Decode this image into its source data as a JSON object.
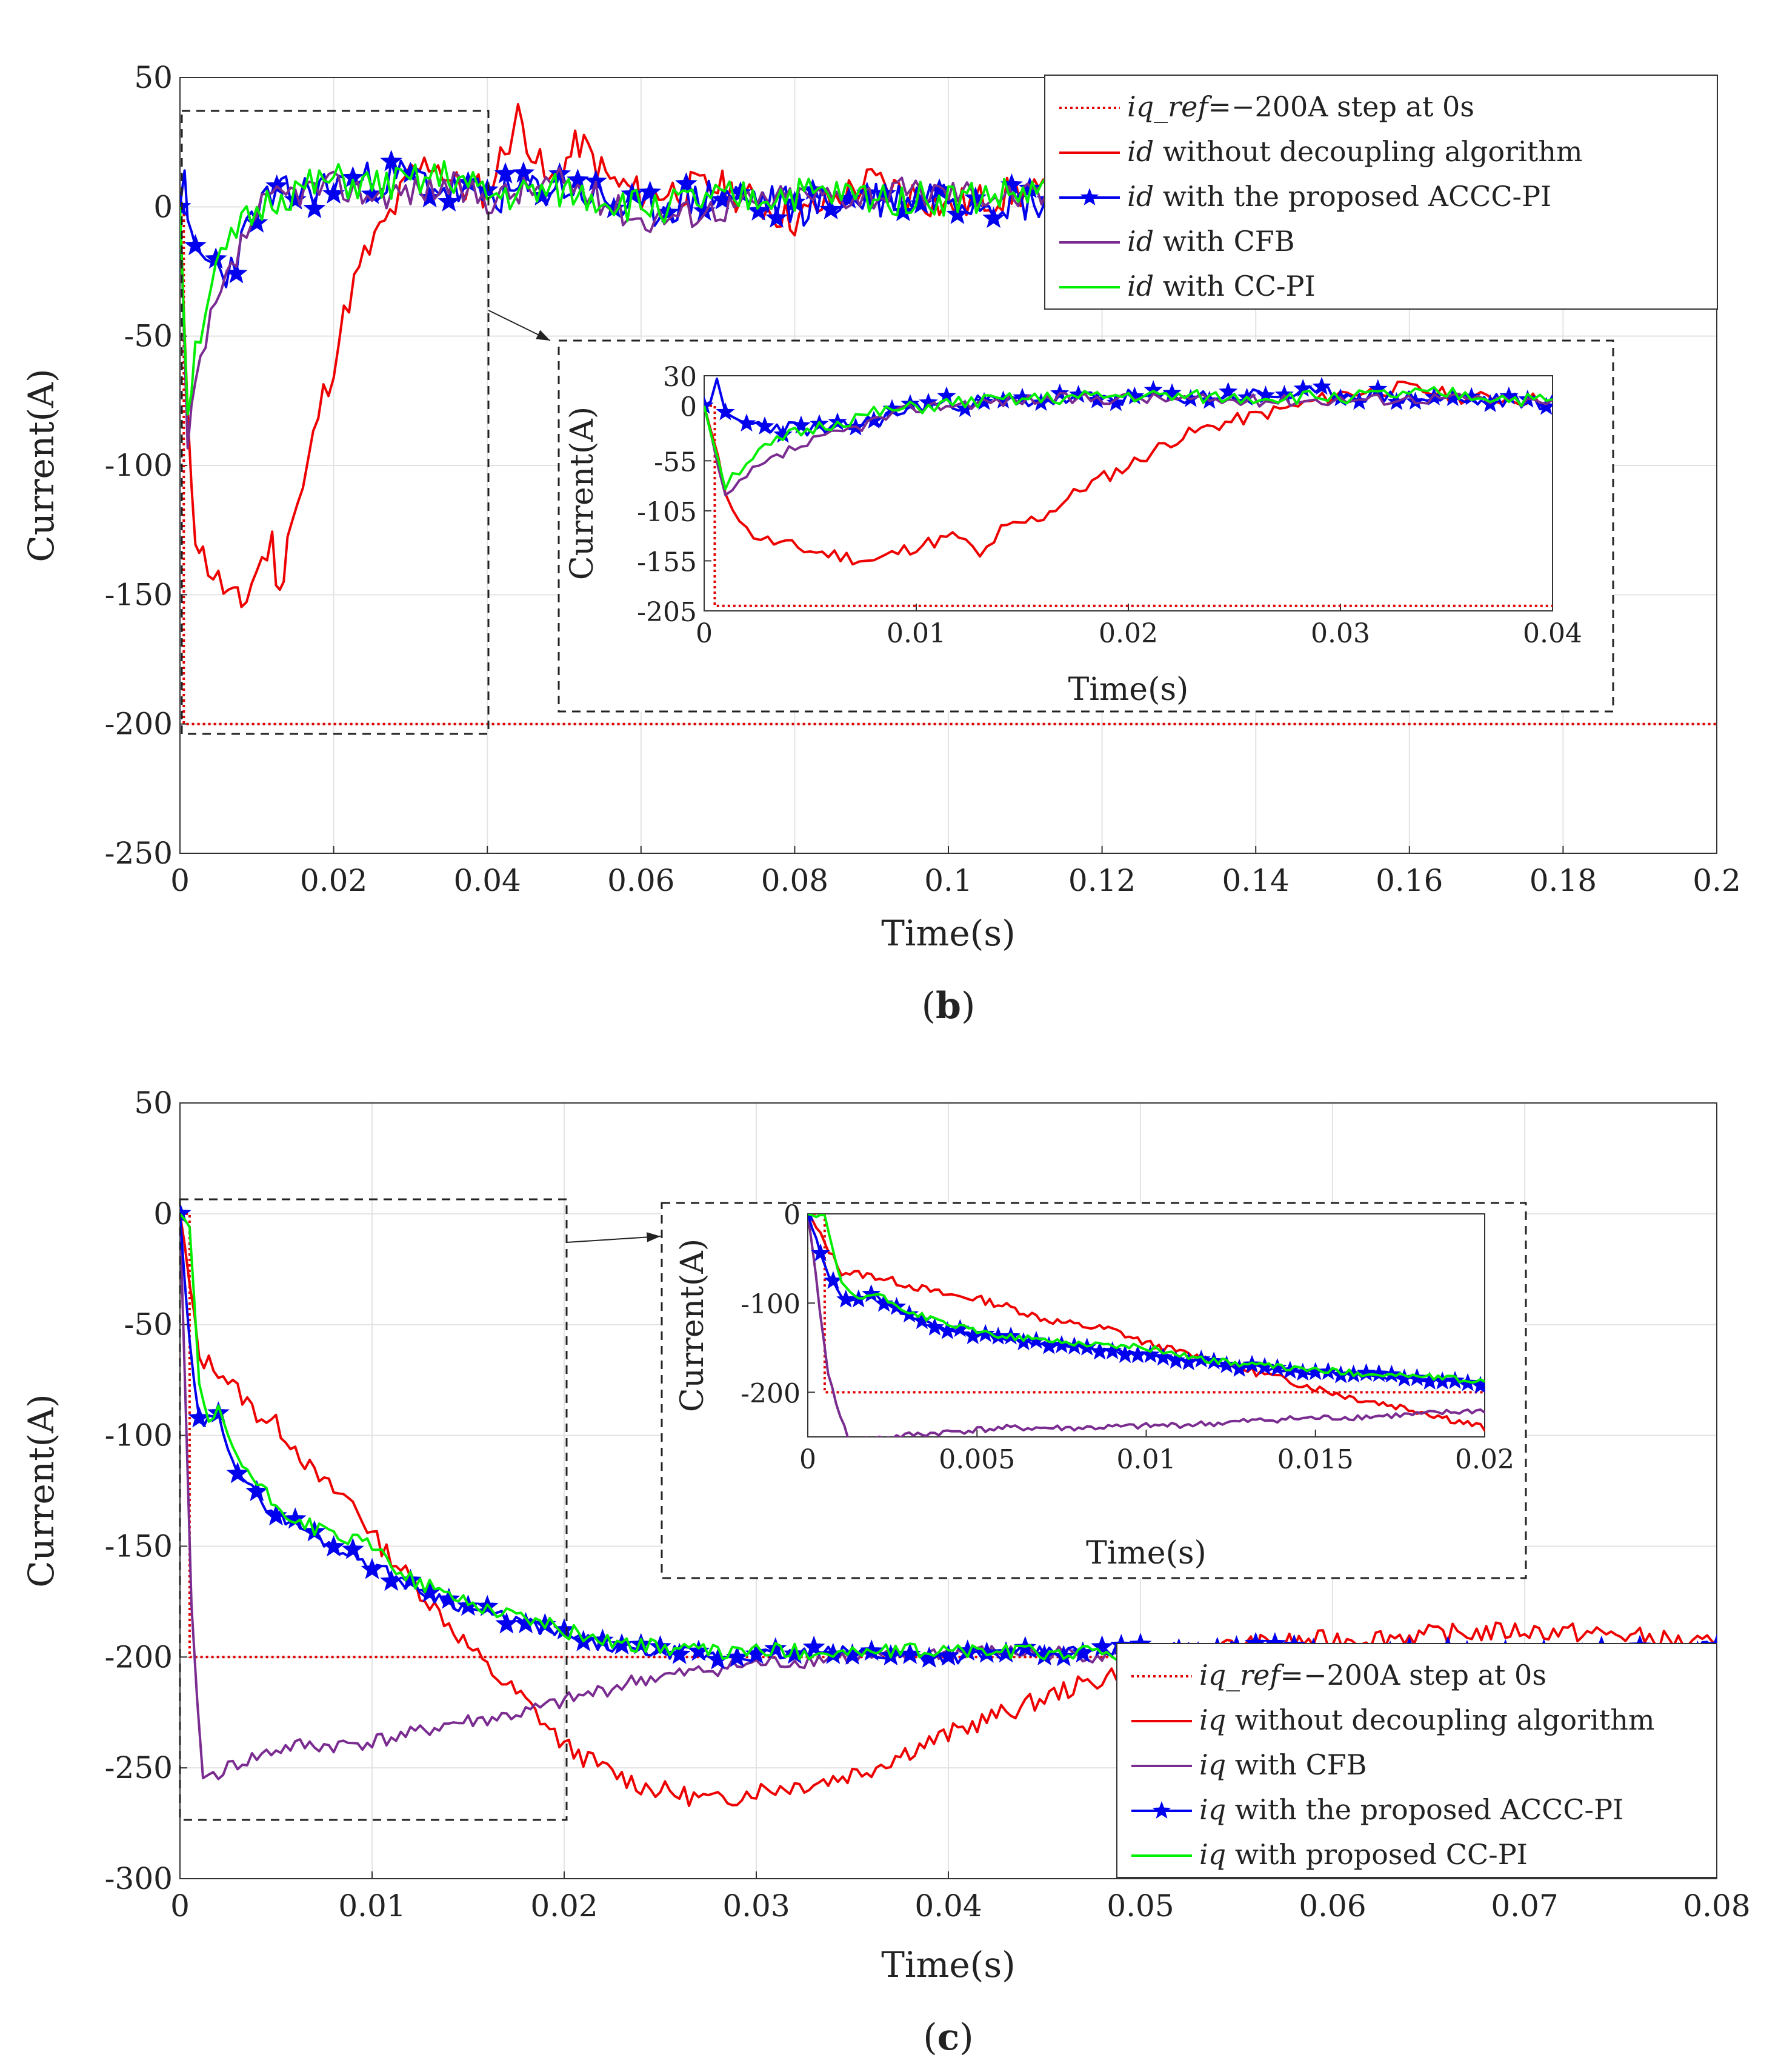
{
  "panels": [
    {
      "id": "b",
      "label_open": "(",
      "label_letter": "b",
      "label_close": ")",
      "xlabel": "Time(s)",
      "ylabel": "Current(A)",
      "xticks": [
        0,
        0.02,
        0.04,
        0.06,
        0.08,
        0.1,
        0.12,
        0.14,
        0.16,
        0.18,
        0.2
      ],
      "xtick_labels": [
        "0",
        "0.02",
        "0.04",
        "0.06",
        "0.08",
        "0.1",
        "0.12",
        "0.14",
        "0.16",
        "0.18",
        "0.2"
      ],
      "yticks": [
        -250,
        -200,
        -150,
        -100,
        -50,
        0,
        50
      ],
      "ytick_labels": [
        "-250",
        "-200",
        "-150",
        "-100",
        "-50",
        "0",
        "50"
      ],
      "legend": [
        {
          "name": "iq_ref",
          "var": "iq_ref",
          "eq": "=−200A step at 0s",
          "color": "#e00000",
          "style": "dotted",
          "marker": false
        },
        {
          "name": "id_nodec",
          "var": "id",
          "text": " without decoupling algorithm",
          "color": "#ee0000",
          "style": "solid",
          "marker": false
        },
        {
          "name": "id_accc",
          "var": "id",
          "text": " with the proposed ACCC-PI",
          "color": "#0000ee",
          "style": "solid",
          "marker": true
        },
        {
          "name": "id_cfb",
          "var": "id",
          "text": " with CFB",
          "color": "#7b2c91",
          "style": "solid",
          "marker": false
        },
        {
          "name": "id_ccpi",
          "var": "id",
          "text": " with CC-PI",
          "color": "#00ee00",
          "style": "solid",
          "marker": false
        }
      ],
      "inset": {
        "xlabel": "Time(s)",
        "ylabel": "Current(A)",
        "xticks": [
          0,
          0.01,
          0.02,
          0.03,
          0.04
        ],
        "xtick_labels": [
          "0",
          "0.01",
          "0.02",
          "0.03",
          "0.04"
        ],
        "yticks": [
          -205,
          -155,
          -105,
          -55,
          0,
          30
        ],
        "ytick_labels": [
          "-205",
          "-155",
          "-105",
          "-55",
          "0",
          "30"
        ]
      }
    },
    {
      "id": "c",
      "label_open": "(",
      "label_letter": "c",
      "label_close": ")",
      "xlabel": "Time(s)",
      "ylabel": "Current(A)",
      "xticks": [
        0,
        0.01,
        0.02,
        0.03,
        0.04,
        0.05,
        0.06,
        0.07,
        0.08
      ],
      "xtick_labels": [
        "0",
        "0.01",
        "0.02",
        "0.03",
        "0.04",
        "0.05",
        "0.06",
        "0.07",
        "0.08"
      ],
      "yticks": [
        -300,
        -250,
        -200,
        -150,
        -100,
        -50,
        0,
        50
      ],
      "ytick_labels": [
        "-300",
        "-250",
        "-200",
        "-150",
        "-100",
        "-50",
        "0",
        "50"
      ],
      "legend": [
        {
          "name": "iq_ref",
          "var": "iq_ref",
          "eq": "=−200A step at 0s",
          "color": "#e00000",
          "style": "dotted",
          "marker": false
        },
        {
          "name": "iq_nodec",
          "var": "iq",
          "text": " without decoupling algorithm",
          "color": "#ee0000",
          "style": "solid",
          "marker": false
        },
        {
          "name": "iq_cfb",
          "var": "iq",
          "text": " with CFB",
          "color": "#7b2c91",
          "style": "solid",
          "marker": false
        },
        {
          "name": "iq_accc",
          "var": "iq",
          "text": " with the proposed ACCC-PI",
          "color": "#0000ee",
          "style": "solid",
          "marker": true
        },
        {
          "name": "iq_ccpi",
          "var": "iq",
          "text": " with proposed CC-PI",
          "color": "#00ee00",
          "style": "solid",
          "marker": false
        }
      ],
      "inset": {
        "xlabel": "Time(s)",
        "ylabel": "Current(A)",
        "xticks": [
          0,
          0.005,
          0.01,
          0.015,
          0.02
        ],
        "xtick_labels": [
          "0",
          "0.005",
          "0.01",
          "0.015",
          "0.02"
        ],
        "yticks": [
          -200,
          -100,
          0
        ],
        "ytick_labels": [
          "-200",
          "-100",
          "0"
        ]
      }
    }
  ],
  "chart_data": [
    {
      "type": "line",
      "title": "(b)",
      "xlabel": "Time(s)",
      "ylabel": "Current(A)",
      "xlim": [
        0,
        0.2
      ],
      "ylim": [
        -250,
        50
      ],
      "grid": true,
      "legend_position": "top-right",
      "series": [
        {
          "name": "iq_ref=−200A step at 0s",
          "x": [
            0,
            0.0005,
            0.0005,
            0.2
          ],
          "y": [
            0,
            0,
            -200,
            -200
          ]
        },
        {
          "name": "id without decoupling algorithm",
          "x": [
            0,
            0.001,
            0.002,
            0.003,
            0.005,
            0.007,
            0.008,
            0.01,
            0.012,
            0.013,
            0.014,
            0.016,
            0.018,
            0.02,
            0.022,
            0.024,
            0.026,
            0.028,
            0.03,
            0.033,
            0.036,
            0.04,
            0.044,
            0.048,
            0.052,
            0.056,
            0.06,
            0.07,
            0.08,
            0.09,
            0.1,
            0.11,
            0.12,
            0.14,
            0.16,
            0.18,
            0.2
          ],
          "y": [
            0,
            -85,
            -125,
            -135,
            -145,
            -152,
            -155,
            -140,
            -130,
            -152,
            -125,
            -110,
            -80,
            -60,
            -35,
            -20,
            -10,
            0,
            12,
            18,
            8,
            6,
            35,
            8,
            25,
            10,
            5,
            8,
            -5,
            10,
            0,
            6,
            -3,
            4,
            2,
            5,
            0
          ]
        },
        {
          "name": "id with the proposed ACCC-PI",
          "x": [
            0,
            0.0006,
            0.001,
            0.002,
            0.004,
            0.006,
            0.008,
            0.01,
            0.012,
            0.015,
            0.02,
            0.025,
            0.03,
            0.035,
            0.04,
            0.05,
            0.06,
            0.07,
            0.08,
            0.09,
            0.1,
            0.11,
            0.12,
            0.14,
            0.16,
            0.18,
            0.2
          ],
          "y": [
            0,
            20,
            -12,
            -18,
            -22,
            -25,
            -15,
            0,
            3,
            5,
            8,
            10,
            12,
            6,
            4,
            8,
            -2,
            5,
            0,
            3,
            5,
            2,
            4,
            1,
            6,
            3,
            -8
          ]
        },
        {
          "name": "id with CFB",
          "x": [
            0,
            0.001,
            0.002,
            0.004,
            0.006,
            0.008,
            0.01,
            0.012,
            0.015,
            0.02,
            0.025,
            0.03,
            0.035,
            0.04,
            0.05,
            0.06,
            0.08,
            0.1,
            0.12,
            0.14
          ],
          "y": [
            0,
            -95,
            -70,
            -45,
            -30,
            -15,
            -2,
            2,
            6,
            8,
            5,
            6,
            8,
            3,
            10,
            -5,
            4,
            6,
            2,
            0
          ]
        },
        {
          "name": "id with CC-PI",
          "x": [
            0,
            0.001,
            0.002,
            0.004,
            0.006,
            0.008,
            0.01,
            0.012,
            0.015,
            0.02,
            0.025,
            0.03,
            0.035,
            0.04,
            0.05,
            0.06,
            0.08,
            0.1,
            0.12,
            0.14
          ],
          "y": [
            0,
            -78,
            -55,
            -30,
            -18,
            -8,
            -2,
            3,
            6,
            10,
            8,
            9,
            12,
            4,
            6,
            0,
            5,
            3,
            7,
            2
          ]
        }
      ]
    },
    {
      "type": "line",
      "title": "(c)",
      "xlabel": "Time(s)",
      "ylabel": "Current(A)",
      "xlim": [
        0,
        0.08
      ],
      "ylim": [
        -300,
        50
      ],
      "grid": true,
      "legend_position": "bottom-right",
      "series": [
        {
          "name": "iq_ref=−200A step at 0s",
          "x": [
            0,
            0.0005,
            0.0005,
            0.08
          ],
          "y": [
            0,
            0,
            -200,
            -200
          ]
        },
        {
          "name": "iq without decoupling algorithm",
          "x": [
            0,
            0.001,
            0.002,
            0.003,
            0.004,
            0.005,
            0.006,
            0.007,
            0.008,
            0.009,
            0.01,
            0.012,
            0.014,
            0.016,
            0.018,
            0.02,
            0.022,
            0.024,
            0.026,
            0.028,
            0.03,
            0.032,
            0.034,
            0.036,
            0.038,
            0.04,
            0.042,
            0.044,
            0.046,
            0.048,
            0.05,
            0.055,
            0.06,
            0.065,
            0.07,
            0.075,
            0.08
          ],
          "y": [
            0,
            -65,
            -70,
            -80,
            -90,
            -95,
            -105,
            -118,
            -125,
            -130,
            -145,
            -165,
            -185,
            -205,
            -220,
            -240,
            -250,
            -258,
            -262,
            -265,
            -260,
            -258,
            -255,
            -250,
            -242,
            -235,
            -228,
            -222,
            -215,
            -210,
            -200,
            -195,
            -192,
            -190,
            -188,
            -190,
            -195
          ]
        },
        {
          "name": "iq with CFB",
          "x": [
            0,
            0.0006,
            0.0012,
            0.002,
            0.003,
            0.004,
            0.005,
            0.006,
            0.008,
            0.01,
            0.012,
            0.014,
            0.016,
            0.018,
            0.02,
            0.022,
            0.024,
            0.026,
            0.028,
            0.03,
            0.032,
            0.034,
            0.036,
            0.038,
            0.04,
            0.045,
            0.05
          ],
          "y": [
            0,
            -180,
            -255,
            -252,
            -248,
            -245,
            -242,
            -240,
            -240,
            -238,
            -235,
            -230,
            -228,
            -225,
            -220,
            -215,
            -210,
            -208,
            -205,
            -203,
            -202,
            -200,
            -200,
            -199,
            -198,
            -198,
            -200
          ]
        },
        {
          "name": "iq with the proposed ACCC-PI",
          "x": [
            0,
            0.0005,
            0.001,
            0.002,
            0.003,
            0.004,
            0.005,
            0.006,
            0.008,
            0.01,
            0.012,
            0.014,
            0.016,
            0.018,
            0.02,
            0.022,
            0.024,
            0.026,
            0.028,
            0.03,
            0.035,
            0.04,
            0.045,
            0.05,
            0.055,
            0.06,
            0.065,
            0.07,
            0.075,
            0.08
          ],
          "y": [
            0,
            -60,
            -95,
            -92,
            -115,
            -128,
            -135,
            -140,
            -150,
            -158,
            -168,
            -175,
            -180,
            -185,
            -190,
            -195,
            -197,
            -198,
            -200,
            -199,
            -198,
            -200,
            -198,
            -197,
            -196,
            -198,
            -197,
            -199,
            -198,
            -195
          ]
        },
        {
          "name": "iq with proposed CC-PI",
          "x": [
            0,
            0.0005,
            0.001,
            0.0015,
            0.002,
            0.003,
            0.004,
            0.005,
            0.006,
            0.008,
            0.01,
            0.012,
            0.014,
            0.016,
            0.018,
            0.02,
            0.022,
            0.024,
            0.026,
            0.028,
            0.03,
            0.035,
            0.04,
            0.045,
            0.05
          ],
          "y": [
            0,
            -5,
            -80,
            -95,
            -90,
            -110,
            -122,
            -132,
            -138,
            -145,
            -150,
            -165,
            -172,
            -178,
            -182,
            -188,
            -192,
            -195,
            -196,
            -198,
            -197,
            -198,
            -197,
            -198,
            -198
          ]
        }
      ]
    }
  ]
}
